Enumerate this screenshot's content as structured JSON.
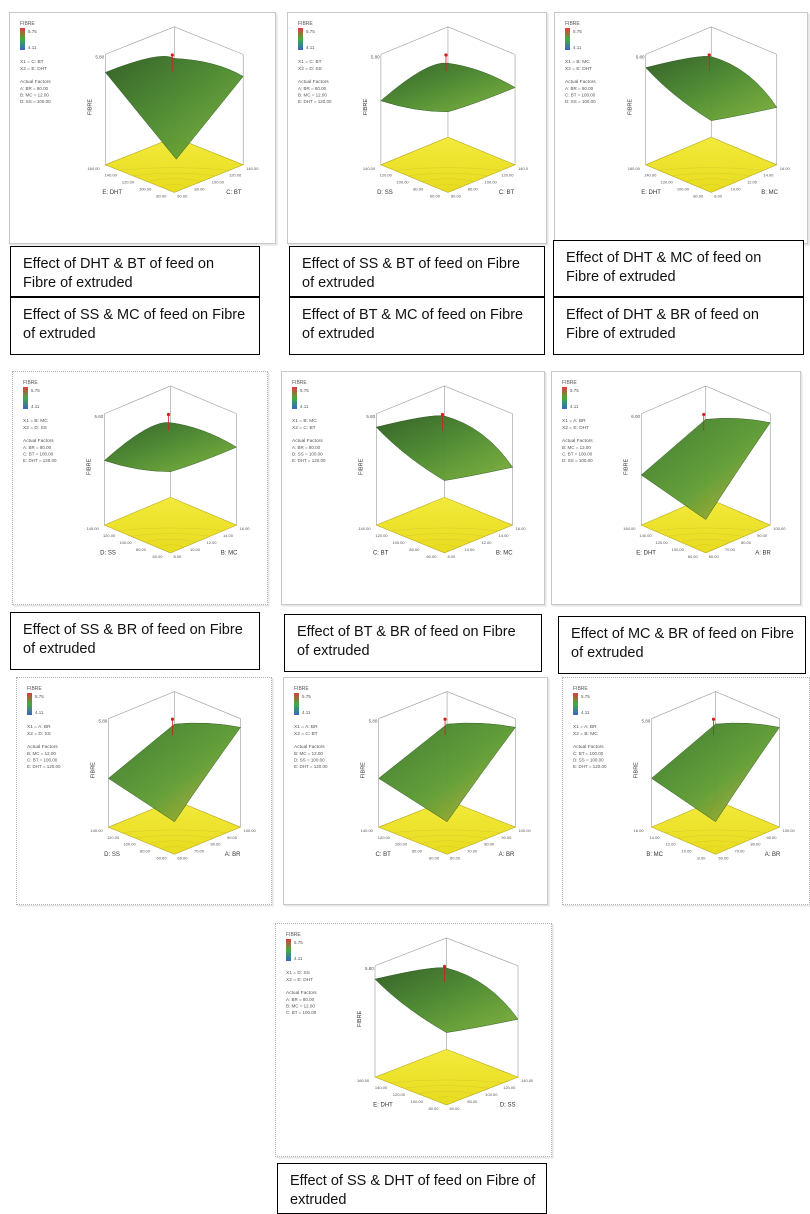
{
  "plots": [
    {
      "id": "p1",
      "legend_title": "FIBRE",
      "legend_hi": "5.75",
      "legend_lo": "4.11",
      "x1_label": "X1 = C: BT",
      "x2_label": "X2 = E: DHT",
      "actual_header": "Actual Factors",
      "actual": [
        "A: BR = 80.00",
        "B: MC = 12.00",
        "D: SS = 100.00"
      ],
      "zlabel": "FIBRE",
      "ztop": "5.80",
      "axis_left": "E: DHT",
      "axis_right": "C: BT",
      "ticks_left": [
        "160.00",
        "140.00",
        "120.00",
        "100.00",
        "80.00"
      ],
      "ticks_right": [
        "140.00",
        "120.00",
        "100.00",
        "80.00",
        "60.00"
      ]
    },
    {
      "id": "p2",
      "legend_title": "FIBRE",
      "legend_hi": "5.75",
      "legend_lo": "4.11",
      "x1_label": "X1 = C: BT",
      "x2_label": "X2 = D: SS",
      "actual_header": "Actual Factors",
      "actual": [
        "A: BR = 80.00",
        "B: MC = 12.00",
        "E: DHT = 120.00"
      ],
      "zlabel": "FIBRE",
      "ztop": "5.80",
      "axis_left": "D: SS",
      "axis_right": "C: BT",
      "ticks_left": [
        "140.00",
        "120.00",
        "100.00",
        "80.00",
        "60.00"
      ],
      "ticks_right": [
        "140.0",
        "120.00",
        "100.00",
        "80.00",
        "60.00"
      ]
    },
    {
      "id": "p3",
      "legend_title": "FIBRE",
      "legend_hi": "5.75",
      "legend_lo": "4.11",
      "x1_label": "X1 = B: MC",
      "x2_label": "X2 = E: DHT",
      "actual_header": "Actual Factors",
      "actual": [
        "A: BR = 80.00",
        "C: BT = 100.00",
        "D: SS = 100.00"
      ],
      "zlabel": "FIBRE",
      "ztop": "5.80",
      "axis_left": "E: DHT",
      "axis_right": "B: MC",
      "ticks_left": [
        "160.00",
        "140.00",
        "120.00",
        "100.00",
        "80.00"
      ],
      "ticks_right": [
        "16.00",
        "14.00",
        "12.00",
        "10.00",
        "8.00"
      ]
    },
    {
      "id": "p4",
      "legend_title": "FIBRE",
      "legend_hi": "5.75",
      "legend_lo": "4.11",
      "x1_label": "X1 = B: MC",
      "x2_label": "X2 = D: SS",
      "actual_header": "Actual Factors",
      "actual": [
        "A: BR = 80.00",
        "C: BT = 100.00",
        "E: DHT = 120.00"
      ],
      "zlabel": "FIBRE",
      "ztop": "5.60",
      "axis_left": "D: SS",
      "axis_right": "B: MC",
      "ticks_left": [
        "140.00",
        "120.00",
        "100.00",
        "80.00",
        "60.00"
      ],
      "ticks_right": [
        "16.00",
        "14.00",
        "12.00",
        "10.00",
        "8.00"
      ]
    },
    {
      "id": "p5",
      "legend_title": "FIBRE",
      "legend_hi": "5.75",
      "legend_lo": "4.11",
      "x1_label": "X1 = B: MC",
      "x2_label": "X2 = C: BT",
      "actual_header": "Actual Factors",
      "actual": [
        "A: BR = 80.00",
        "D: SS = 100.00",
        "E: DHT = 120.00"
      ],
      "zlabel": "FIBRE",
      "ztop": "5.80",
      "axis_left": "C: BT",
      "axis_right": "B: MC",
      "ticks_left": [
        "140.00",
        "120.00",
        "100.00",
        "80.00",
        "60.00"
      ],
      "ticks_right": [
        "16.00",
        "14.00",
        "12.00",
        "10.00",
        "8.00"
      ]
    },
    {
      "id": "p6",
      "legend_title": "FIBRE",
      "legend_hi": "5.75",
      "legend_lo": "4.11",
      "x1_label": "X1 = A: BR",
      "x2_label": "X2 = E: DHT",
      "actual_header": "Actual Factors",
      "actual": [
        "B: MC = 12.00",
        "C: BT = 100.00",
        "D: SS = 100.00"
      ],
      "zlabel": "FIBRE",
      "ztop": "6.00",
      "axis_left": "E: DHT",
      "axis_right": "A: BR",
      "ticks_left": [
        "160.00",
        "140.00",
        "120.00",
        "100.00",
        "80.00"
      ],
      "ticks_right": [
        "100.00",
        "90.00",
        "80.00",
        "70.00",
        "60.00"
      ]
    },
    {
      "id": "p7",
      "legend_title": "FIBRE",
      "legend_hi": "5.75",
      "legend_lo": "4.11",
      "x1_label": "X1 = A: BR",
      "x2_label": "X2 = D: SS",
      "actual_header": "Actual Factors",
      "actual": [
        "B: MC = 12.00",
        "C: BT = 100.00",
        "E: DHT = 120.00"
      ],
      "zlabel": "FIBRE",
      "ztop": "5.80",
      "axis_left": "D: SS",
      "axis_right": "A: BR",
      "ticks_left": [
        "140.00",
        "120.00",
        "100.00",
        "80.00",
        "60.00"
      ],
      "ticks_right": [
        "100.00",
        "90.00",
        "80.00",
        "70.00",
        "60.00"
      ]
    },
    {
      "id": "p8",
      "legend_title": "FIBRE",
      "legend_hi": "5.75",
      "legend_lo": "4.11",
      "x1_label": "X1 = A: BR",
      "x2_label": "X2 = C: BT",
      "actual_header": "Actual Factors",
      "actual": [
        "B: MC = 12.00",
        "D: SS = 100.00",
        "E: DHT = 120.00"
      ],
      "zlabel": "FIBRE",
      "ztop": "5.80",
      "axis_left": "C: BT",
      "axis_right": "A: BR",
      "ticks_left": [
        "140.00",
        "120.00",
        "100.00",
        "80.00",
        "60.00"
      ],
      "ticks_right": [
        "100.00",
        "90.00",
        "80.00",
        "70.00",
        "60.00"
      ]
    },
    {
      "id": "p9",
      "legend_title": "FIBRE",
      "legend_hi": "5.75",
      "legend_lo": "4.11",
      "x1_label": "X1 = A: BR",
      "x2_label": "X2 = B: MC",
      "actual_header": "Actual Factors",
      "actual": [
        "C: BT = 100.00",
        "D: SS = 100.00",
        "E: DHT = 120.00"
      ],
      "zlabel": "FIBRE",
      "ztop": "5.80",
      "axis_left": "B: MC",
      "axis_right": "A: BR",
      "ticks_left": [
        "16.00",
        "14.00",
        "12.00",
        "10.00",
        "8.00"
      ],
      "ticks_right": [
        "100.00",
        "90.00",
        "80.00",
        "70.00",
        "60.00"
      ]
    },
    {
      "id": "p10",
      "legend_title": "FIBRE",
      "legend_hi": "5.75",
      "legend_lo": "4.11",
      "x1_label": "X1 = D: SS",
      "x2_label": "X2 = E: DHT",
      "actual_header": "Actual Factors",
      "actual": [
        "A: BR = 80.00",
        "B: MC = 12.00",
        "C: BT = 100.00"
      ],
      "zlabel": "FIBRE",
      "ztop": "5.80",
      "axis_left": "E: DHT",
      "axis_right": "D: SS",
      "ticks_left": [
        "160.00",
        "140.00",
        "120.00",
        "100.00",
        "80.00"
      ],
      "ticks_right": [
        "140.00",
        "120.00",
        "100.00",
        "80.00",
        "60.00"
      ]
    }
  ],
  "captions": [
    "Effect of DHT & BT of feed on Fibre of extruded",
    "Effect of SS & BT of feed on Fibre of extruded",
    "Effect of DHT & MC of feed on Fibre of extruded",
    "Effect of SS & MC of feed on Fibre of extruded",
    "Effect of BT & MC of feed on Fibre of extruded",
    "Effect of DHT & BR of feed on Fibre of extruded",
    "Effect of SS & BR of feed on Fibre of extruded",
    "Effect of BT & BR of feed on Fibre of extruded",
    "Effect of MC & BR of feed on Fibre of extruded",
    "Effect of SS & DHT of feed on Fibre of extruded"
  ]
}
